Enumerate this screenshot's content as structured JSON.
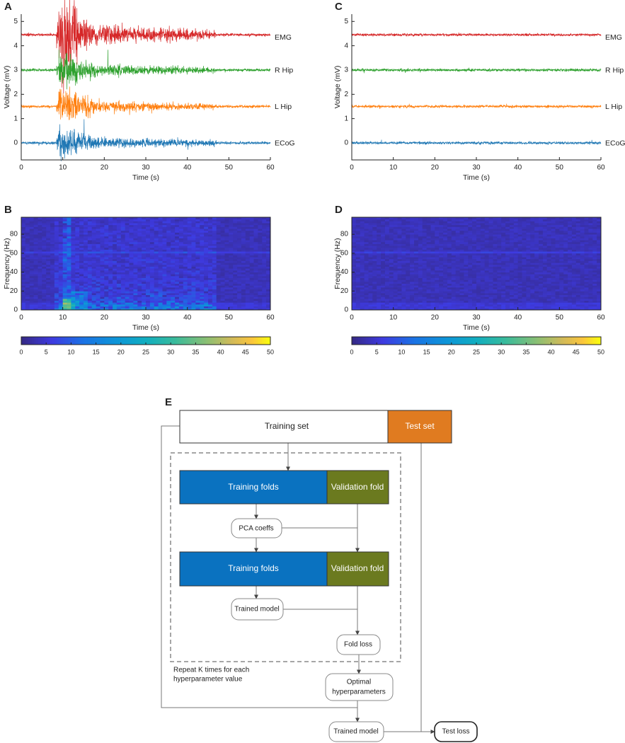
{
  "panels": [
    {
      "letter": "A",
      "xlabel": "Time (s)",
      "ylabel": "Voltage (mV)",
      "xlim": [
        0,
        60
      ],
      "xticks": [
        0,
        10,
        20,
        30,
        40,
        50,
        60
      ],
      "ylim": [
        -0.7,
        5.3
      ],
      "yticks": [
        0,
        1,
        2,
        3,
        4,
        5
      ],
      "traces": [
        {
          "name": "EMG",
          "color": "#d62728",
          "baseline": 4.45
        },
        {
          "name": "R Hip",
          "color": "#2ca02c",
          "baseline": 3
        },
        {
          "name": "L Hip",
          "color": "#ff7f0e",
          "baseline": 1.5
        },
        {
          "name": "ECoG",
          "color": "#1f77b4",
          "baseline": 0
        }
      ]
    },
    {
      "letter": "C",
      "xlabel": "Time (s)",
      "ylabel": "Voltage (mV)",
      "xlim": [
        0,
        60
      ],
      "xticks": [
        0,
        10,
        20,
        30,
        40,
        50,
        60
      ],
      "ylim": [
        -0.7,
        5.3
      ],
      "yticks": [
        0,
        1,
        2,
        3,
        4,
        5
      ],
      "traces": [
        {
          "name": "EMG",
          "color": "#d62728",
          "baseline": 4.45
        },
        {
          "name": "R Hip",
          "color": "#2ca02c",
          "baseline": 3
        },
        {
          "name": "L Hip",
          "color": "#ff7f0e",
          "baseline": 1.5
        },
        {
          "name": "ECoG",
          "color": "#1f77b4",
          "baseline": 0
        }
      ]
    }
  ],
  "spectrograms": [
    {
      "letter": "B",
      "xlabel": "Time (s)",
      "ylabel": "Frequency (Hz)",
      "xlim": [
        0,
        60
      ],
      "xticks": [
        0,
        10,
        20,
        30,
        40,
        50,
        60
      ],
      "ylim": [
        0,
        98
      ],
      "yticks": [
        0,
        20,
        40,
        60,
        80
      ],
      "clim": [
        0,
        50
      ],
      "cticks": [
        0,
        5,
        10,
        15,
        20,
        25,
        30,
        35,
        40,
        45,
        50
      ]
    },
    {
      "letter": "D",
      "xlabel": "Time (s)",
      "ylabel": "Frequency (Hz)",
      "xlim": [
        0,
        60
      ],
      "xticks": [
        0,
        10,
        20,
        30,
        40,
        50,
        60
      ],
      "ylim": [
        0,
        98
      ],
      "yticks": [
        0,
        20,
        40,
        60,
        80
      ],
      "clim": [
        0,
        50
      ],
      "cticks": [
        0,
        5,
        10,
        15,
        20,
        25,
        30,
        35,
        40,
        45,
        50
      ]
    }
  ],
  "diagram": {
    "letter": "E",
    "training_set": "Training set",
    "test_set": "Test set",
    "training_folds_1": "Training folds",
    "validation_fold_1": "Validation fold",
    "pca": "PCA coeffs",
    "training_folds_2": "Training folds",
    "validation_fold_2": "Validation fold",
    "trained_model_inner": "Trained model",
    "fold_loss": "Fold loss",
    "repeat_note": [
      "Repeat K times for each",
      "hyperparameter value"
    ],
    "optimal": [
      "Optimal",
      "hyperparameters"
    ],
    "trained_model": "Trained model",
    "test_loss": "Test loss"
  }
}
